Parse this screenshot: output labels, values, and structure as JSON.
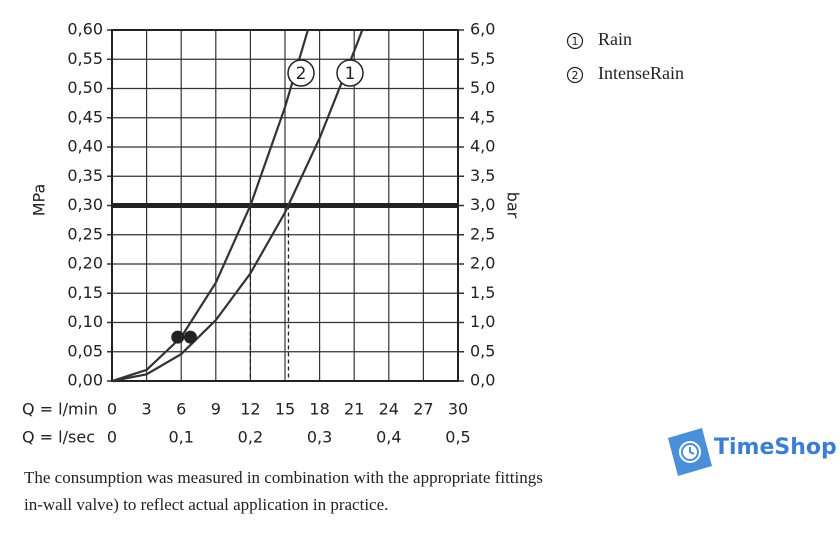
{
  "chart_data": {
    "type": "line",
    "y_label": "MPa",
    "y2_label": "bar",
    "x_row_label": "Q = l/min",
    "x2_row_label": "Q = l/sec",
    "xlim": [
      0,
      30
    ],
    "xticks": [
      0,
      3,
      6,
      9,
      12,
      15,
      18,
      21,
      24,
      27,
      30
    ],
    "x2lim": [
      0,
      0.5
    ],
    "x2ticks": [
      0,
      {
        "value": 0.1,
        "label": "0,1"
      },
      {
        "value": 0.2,
        "label": "0,2"
      },
      {
        "value": 0.3,
        "label": "0,3"
      },
      {
        "value": 0.4,
        "label": "0,4"
      },
      {
        "value": 0.5,
        "label": "0,5"
      }
    ],
    "ylim": [
      0,
      0.6
    ],
    "yticks": [
      {
        "value": 0,
        "label": "0,00"
      },
      {
        "value": 0.05,
        "label": "0,05"
      },
      {
        "value": 0.1,
        "label": "0,10"
      },
      {
        "value": 0.15,
        "label": "0,15"
      },
      {
        "value": 0.2,
        "label": "0,20"
      },
      {
        "value": 0.25,
        "label": "0,25"
      },
      {
        "value": 0.3,
        "label": "0,30"
      },
      {
        "value": 0.35,
        "label": "0,35"
      },
      {
        "value": 0.4,
        "label": "0,40"
      },
      {
        "value": 0.45,
        "label": "0,45"
      },
      {
        "value": 0.5,
        "label": "0,50"
      },
      {
        "value": 0.55,
        "label": "0,55"
      },
      {
        "value": 0.6,
        "label": "0,60"
      }
    ],
    "y2lim": [
      0,
      6
    ],
    "y2ticks": [
      {
        "value": 0,
        "label": "0,0"
      },
      {
        "value": 0.5,
        "label": "0,5"
      },
      {
        "value": 1,
        "label": "1,0"
      },
      {
        "value": 1.5,
        "label": "1,5"
      },
      {
        "value": 2,
        "label": "2,0"
      },
      {
        "value": 2.5,
        "label": "2,5"
      },
      {
        "value": 3,
        "label": "3,0"
      },
      {
        "value": 3.5,
        "label": "3,5"
      },
      {
        "value": 4,
        "label": "4,0"
      },
      {
        "value": 4.5,
        "label": "4,5"
      },
      {
        "value": 5,
        "label": "5,0"
      },
      {
        "value": 5.5,
        "label": "5,5"
      },
      {
        "value": 6,
        "label": "6,0"
      }
    ],
    "grid": true,
    "threshold": 0.3,
    "drop_lines_x": [
      12,
      15.3
    ],
    "markers": {
      "x": [
        5.7,
        6.8
      ],
      "y": [
        0.075,
        0.075
      ]
    },
    "series": [
      {
        "name": "Rain",
        "label": "1",
        "color": "#333333",
        "x": [
          0,
          3,
          6,
          9,
          12,
          15,
          18,
          21,
          21.7
        ],
        "values": [
          0,
          0.0115,
          0.046,
          0.104,
          0.184,
          0.288,
          0.415,
          0.564,
          0.6
        ]
      },
      {
        "name": "IntenseRain",
        "label": "2",
        "color": "#333333",
        "x": [
          0,
          3,
          6,
          9,
          12,
          15,
          17
        ],
        "values": [
          0,
          0.019,
          0.075,
          0.168,
          0.3,
          0.468,
          0.601
        ]
      }
    ]
  },
  "caption": [
    "The consumption was measured in combination with the appropriate fittings",
    "in-wall valve) to reflect actual application in practice."
  ],
  "watermark": "TimeShop"
}
